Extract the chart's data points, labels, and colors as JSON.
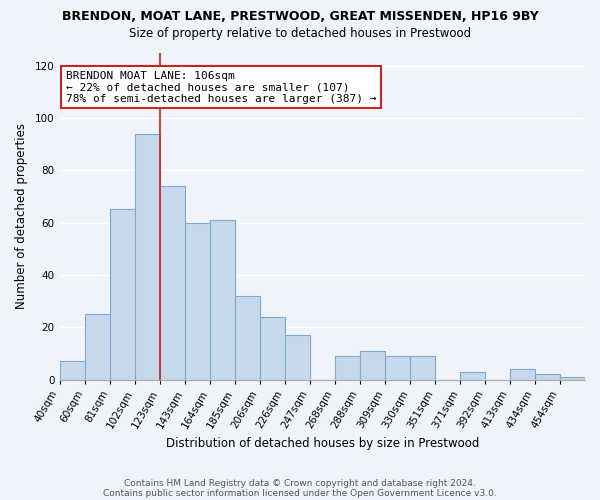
{
  "title": "BRENDON, MOAT LANE, PRESTWOOD, GREAT MISSENDEN, HP16 9BY",
  "subtitle": "Size of property relative to detached houses in Prestwood",
  "xlabel": "Distribution of detached houses by size in Prestwood",
  "ylabel": "Number of detached properties",
  "bar_color": "#c8d8ec",
  "bar_edge_color": "#7aabcc",
  "bin_labels": [
    "40sqm",
    "60sqm",
    "81sqm",
    "102sqm",
    "123sqm",
    "143sqm",
    "164sqm",
    "185sqm",
    "206sqm",
    "226sqm",
    "247sqm",
    "268sqm",
    "288sqm",
    "309sqm",
    "330sqm",
    "351sqm",
    "371sqm",
    "392sqm",
    "413sqm",
    "434sqm",
    "454sqm"
  ],
  "bar_heights": [
    7,
    25,
    65,
    94,
    74,
    60,
    61,
    32,
    24,
    17,
    0,
    9,
    11,
    9,
    9,
    0,
    3,
    0,
    4,
    2,
    1
  ],
  "ylim": [
    0,
    125
  ],
  "yticks": [
    0,
    20,
    40,
    60,
    80,
    100,
    120
  ],
  "property_line_index": 4,
  "property_line_label": "BRENDON MOAT LANE: 106sqm",
  "annotation_line1": "← 22% of detached houses are smaller (107)",
  "annotation_line2": "78% of semi-detached houses are larger (387) →",
  "annotation_box_color": "#ffffff",
  "annotation_box_edge": "#cc2222",
  "line_color": "#cc2222",
  "footer1": "Contains HM Land Registry data © Crown copyright and database right 2024.",
  "footer2": "Contains public sector information licensed under the Open Government Licence v3.0.",
  "background_color": "#f0f4fa",
  "grid_color": "#ffffff",
  "title_fontsize": 9.0,
  "subtitle_fontsize": 8.5,
  "tick_fontsize": 7.5,
  "ylabel_fontsize": 8.5,
  "xlabel_fontsize": 8.5,
  "annotation_fontsize": 8.0
}
